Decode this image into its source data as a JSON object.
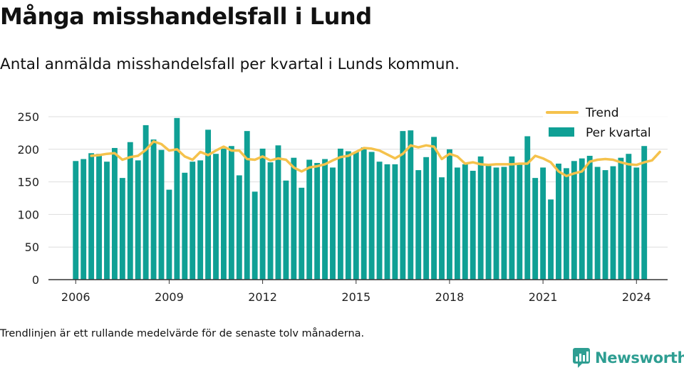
{
  "title": "Många misshandelsfall i Lund",
  "subtitle": "Antal anmälda misshandelsfall per kvartal i Lunds kommun.",
  "footnote": "Trendlinjen är ett rullande medelvärde för de senaste tolv månaderna.",
  "brand": {
    "name": "Newsworthy",
    "color": "#2e9e92",
    "icon": "bar-chart-logo-icon"
  },
  "colors": {
    "bar": "#0fa095",
    "trend": "#f5c24c",
    "grid": "#dddddd",
    "axis": "#333333"
  },
  "chart_data": {
    "type": "bar",
    "xlim": [
      2005.125,
      2025.0
    ],
    "ylim": [
      0,
      250
    ],
    "x_ticks": [
      2006,
      2009,
      2012,
      2015,
      2018,
      2021,
      2024
    ],
    "y_ticks": [
      0,
      50,
      100,
      150,
      200,
      250
    ],
    "legend_position": "top-right",
    "grid": true,
    "series": [
      {
        "name": "Per kvartal",
        "kind": "bar",
        "x_start": 2006,
        "step": 0.25,
        "values": [
          182,
          185,
          194,
          193,
          181,
          202,
          156,
          211,
          183,
          237,
          215,
          199,
          138,
          248,
          164,
          181,
          183,
          230,
          193,
          201,
          205,
          160,
          228,
          135,
          201,
          180,
          206,
          152,
          187,
          141,
          184,
          179,
          185,
          172,
          201,
          197,
          196,
          203,
          196,
          181,
          177,
          177,
          228,
          229,
          168,
          188,
          219,
          157,
          200,
          172,
          177,
          167,
          189,
          175,
          172,
          173,
          189,
          177,
          220,
          156,
          172,
          123,
          178,
          171,
          182,
          186,
          190,
          173,
          168,
          174,
          187,
          193,
          172,
          205
        ]
      },
      {
        "name": "Trend",
        "kind": "line",
        "x_start": 2006.5,
        "step": 0.25,
        "values": [
          190,
          191,
          193,
          194,
          184,
          188,
          190,
          199,
          212,
          208,
          198,
          200,
          189,
          184,
          196,
          191,
          198,
          204,
          198,
          198,
          185,
          184,
          189,
          183,
          186,
          184,
          172,
          166,
          172,
          174,
          177,
          183,
          188,
          190,
          196,
          202,
          201,
          198,
          192,
          186,
          193,
          206,
          203,
          206,
          204,
          185,
          193,
          189,
          178,
          180,
          177,
          176,
          177,
          177,
          177,
          178,
          178,
          190,
          186,
          180,
          166,
          159,
          163,
          166,
          181,
          184,
          185,
          184,
          180,
          177,
          176,
          180,
          183,
          196
        ]
      }
    ]
  }
}
